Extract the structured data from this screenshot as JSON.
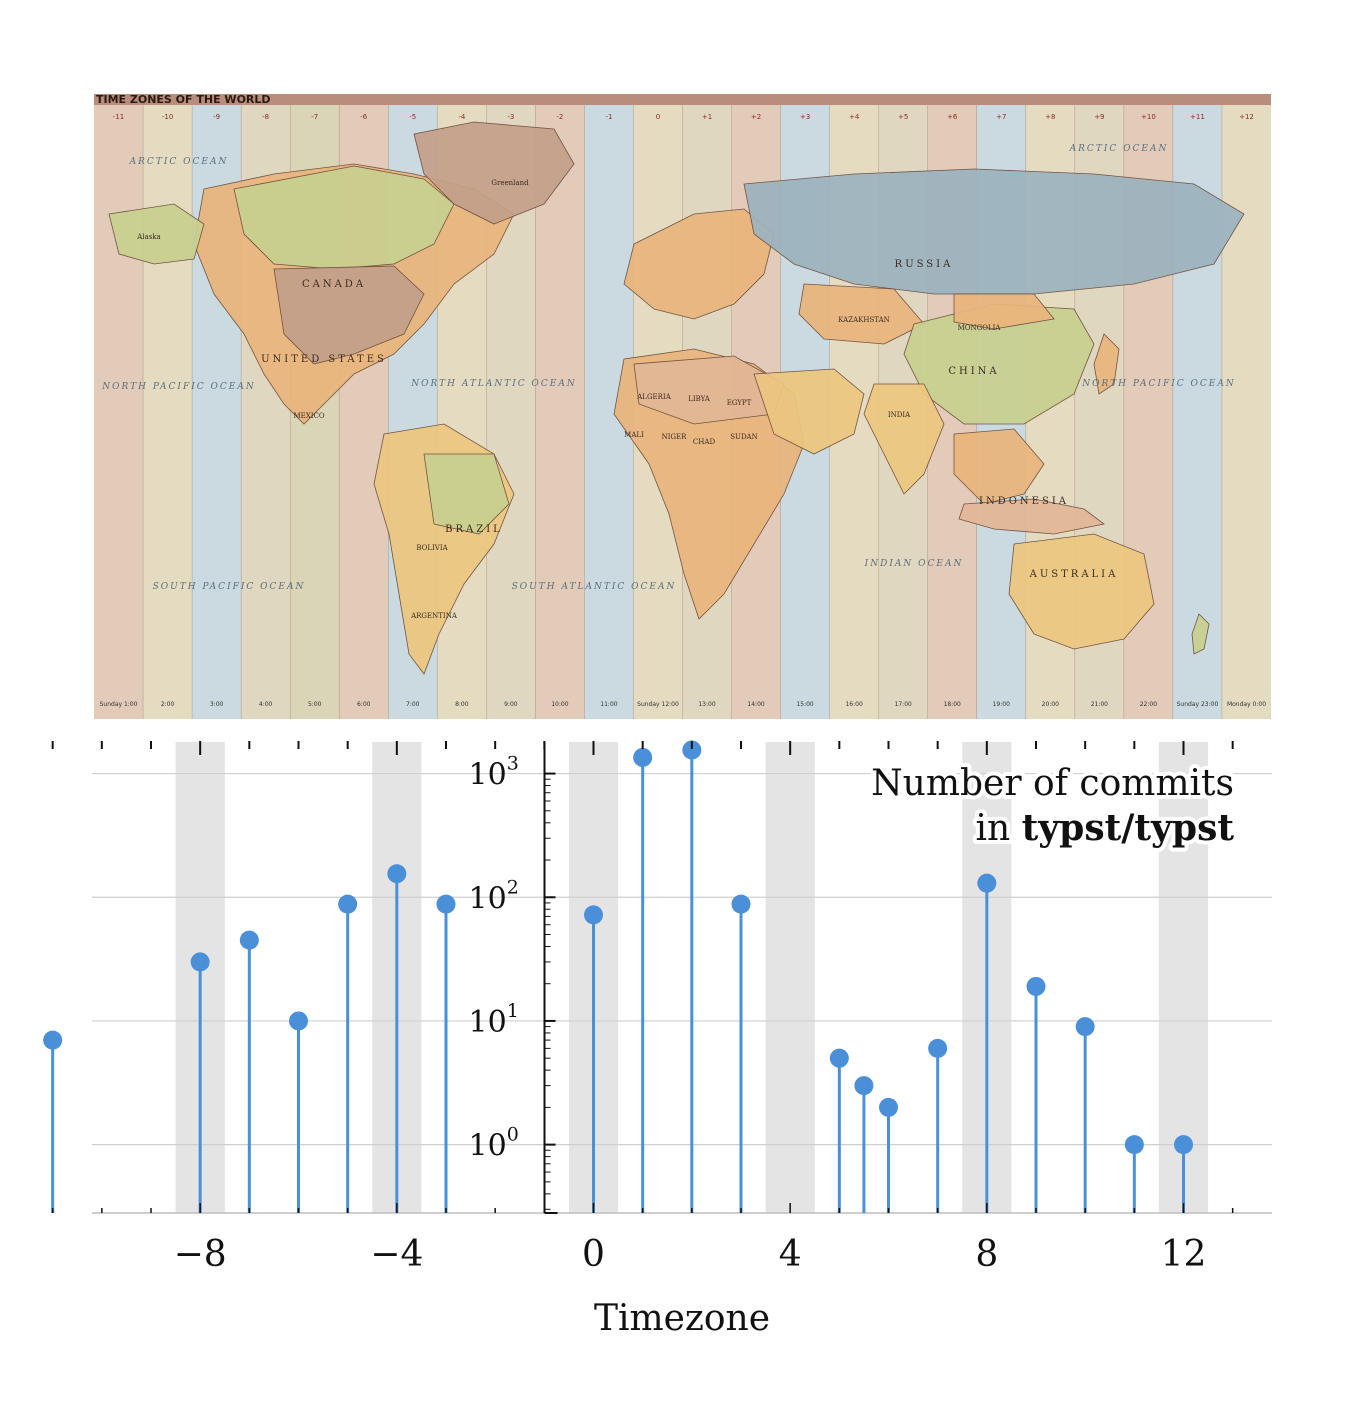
{
  "map": {
    "title": "TIME ZONES OF THE WORLD",
    "zone_labels": [
      "-11",
      "-10",
      "-9",
      "-8",
      "-7",
      "-6",
      "-5",
      "-4",
      "-3",
      "-2",
      "-1",
      "0",
      "+1",
      "+2",
      "+3",
      "+4",
      "+5",
      "+6",
      "+7",
      "+8",
      "+9",
      "+10",
      "+11",
      "+12"
    ],
    "zone_colors": [
      "#f2cdb5",
      "#f5e1bd",
      "#d4e0e3",
      "#eedcbe",
      "#e6d9b0",
      "#f2cdb5",
      "#d4e0e3",
      "#f5e1bd",
      "#eedcbe",
      "#f2cdb5",
      "#d4e0e3",
      "#f5e1bd",
      "#eedcbe",
      "#f2cdb5",
      "#d4e0e3",
      "#f5e1bd",
      "#eedcbe",
      "#f2cdb5",
      "#d4e0e3",
      "#f5e1bd",
      "#eedcbe",
      "#f2cdb5",
      "#d4e0e3",
      "#f5e1bd"
    ],
    "oceans": [
      "ARCTIC OCEAN",
      "NORTH PACIFIC OCEAN",
      "NORTH ATLANTIC OCEAN",
      "SOUTH PACIFIC OCEAN",
      "SOUTH ATLANTIC OCEAN",
      "INDIAN OCEAN",
      "ARCTIC OCEAN",
      "NORTH PACIFIC OCEAN"
    ],
    "countries": [
      "CANADA",
      "UNITED STATES",
      "BRAZIL",
      "RUSSIA",
      "CHINA",
      "KAZAKHSTAN",
      "INDONESIA",
      "AUSTRALIA",
      "MONGOLIA",
      "Greenland",
      "Alaska",
      "ALGERIA",
      "LIBYA",
      "EGYPT",
      "NIGER",
      "CHAD",
      "SUDAN",
      "MALI",
      "MEXICO",
      "INDIA",
      "ARGENTINA",
      "BOLIVIA"
    ],
    "time_row": [
      "Sunday 1:00",
      "2:00",
      "3:00",
      "4:00",
      "5:00",
      "6:00",
      "7:00",
      "8:00",
      "9:00",
      "10:00",
      "11:00",
      "Sunday 12:00",
      "13:00",
      "14:00",
      "15:00",
      "16:00",
      "17:00",
      "18:00",
      "19:00",
      "20:00",
      "21:00",
      "22:00",
      "Sunday 23:00",
      "Monday 0:00"
    ],
    "land_colors": {
      "green": "#c8d08f",
      "orange": "#eab57c",
      "brown": "#c4a08a",
      "blue": "#9cb3bf",
      "yellow": "#ecc77f",
      "tan": "#e2b796"
    }
  },
  "chart_data": {
    "type": "stem",
    "title_line1": "Number of commits",
    "title_line2_prefix": "in ",
    "title_line2_bold": "typst/typst",
    "xlabel": "Timezone",
    "ylabel": "",
    "y_scale": "log",
    "xlim": [
      -10.2,
      13.8
    ],
    "ylim": [
      0.28,
      1800
    ],
    "xticks": [
      -8,
      -4,
      0,
      4,
      8,
      12
    ],
    "xtick_labels": [
      "−8",
      "−4",
      "0",
      "4",
      "8",
      "12"
    ],
    "yticks": [
      {
        "value": 1,
        "base": "10",
        "exp": "0"
      },
      {
        "value": 10,
        "base": "10",
        "exp": "1"
      },
      {
        "value": 100,
        "base": "10",
        "exp": "2"
      },
      {
        "value": 1000,
        "base": "10",
        "exp": "3"
      }
    ],
    "shaded_bands": [
      [
        -8.5,
        -7.5
      ],
      [
        -4.5,
        -3.5
      ],
      [
        -0.5,
        0.5
      ],
      [
        3.5,
        4.5
      ],
      [
        7.5,
        8.5
      ],
      [
        11.5,
        12.5
      ]
    ],
    "grid": "horizontal",
    "color": "#4a90d9",
    "points": [
      {
        "x": -11,
        "y": 7
      },
      {
        "x": -8,
        "y": 30
      },
      {
        "x": -7,
        "y": 45
      },
      {
        "x": -6,
        "y": 10
      },
      {
        "x": -5,
        "y": 88
      },
      {
        "x": -4,
        "y": 155
      },
      {
        "x": -3,
        "y": 88
      },
      {
        "x": 0,
        "y": 72
      },
      {
        "x": 1,
        "y": 1350
      },
      {
        "x": 2,
        "y": 1550
      },
      {
        "x": 3,
        "y": 88
      },
      {
        "x": 5,
        "y": 5
      },
      {
        "x": 5.5,
        "y": 3
      },
      {
        "x": 6,
        "y": 2
      },
      {
        "x": 7,
        "y": 6
      },
      {
        "x": 8,
        "y": 130
      },
      {
        "x": 9,
        "y": 19
      },
      {
        "x": 10,
        "y": 9
      },
      {
        "x": 11,
        "y": 1
      },
      {
        "x": 12,
        "y": 1
      }
    ]
  }
}
